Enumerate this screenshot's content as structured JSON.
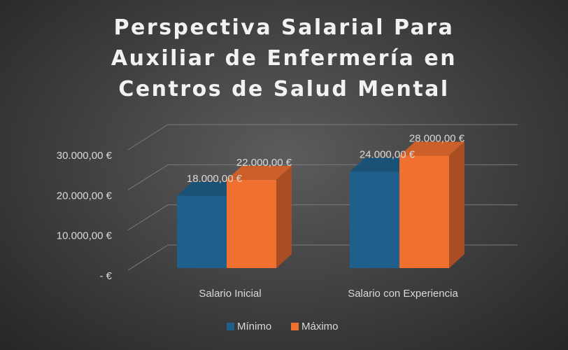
{
  "chart_data": {
    "type": "bar3d",
    "title": "Perspectiva Salarial Para Auxiliar de Enfermería en Centros de Salud Mental",
    "categories": [
      "Salario Inicial",
      "Salario con Experiencia"
    ],
    "series": [
      {
        "name": "Mínimo",
        "color": "#1f5f8b",
        "values": [
          18000,
          24000
        ],
        "value_labels": [
          "18.000,00 €",
          "24.000,00 €"
        ]
      },
      {
        "name": "Máximo",
        "color": "#f07030",
        "values": [
          22000,
          28000
        ],
        "value_labels": [
          "22.000,00 €",
          "28.000,00 €"
        ]
      }
    ],
    "ylim": [
      0,
      30000
    ],
    "yticks": [
      {
        "value": 0,
        "label": "-  €"
      },
      {
        "value": 10000,
        "label": "10.000,00 €"
      },
      {
        "value": 20000,
        "label": "20.000,00 €"
      },
      {
        "value": 30000,
        "label": "30.000,00 €"
      }
    ],
    "grid": true,
    "legend": "bottom"
  }
}
